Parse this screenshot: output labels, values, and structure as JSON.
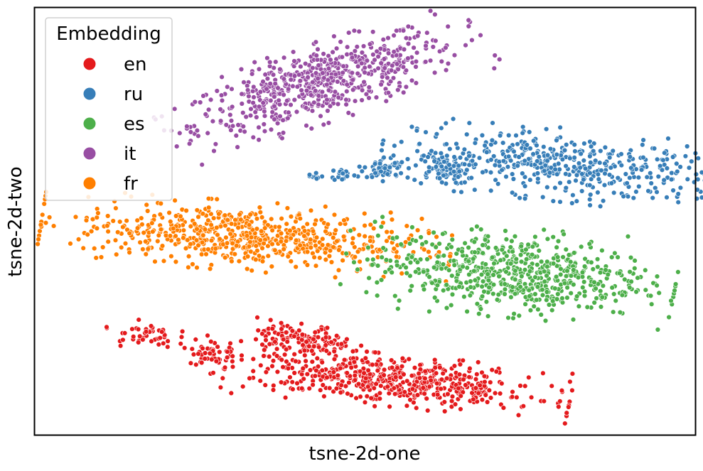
{
  "chart_data": {
    "type": "scatter",
    "xlabel": "tsne-2d-one",
    "ylabel": "tsne-2d-two",
    "grid": false,
    "ticks": "hidden",
    "legend": {
      "title": "Embedding",
      "placement": "upper-left"
    },
    "xlim": [
      0,
      100
    ],
    "ylim": [
      0,
      100
    ],
    "series": [
      {
        "name": "en",
        "color": "#e41a1c",
        "clusters": [
          {
            "cx": 16.5,
            "cy": 23.5,
            "sx": 2.4,
            "sy": 1.4,
            "rot": -5,
            "n": 45
          },
          {
            "cx": 27.0,
            "cy": 19.0,
            "sx": 1.8,
            "sy": 2.4,
            "rot": 0,
            "n": 55
          },
          {
            "cx": 40.5,
            "cy": 22.0,
            "sx": 3.8,
            "sy": 1.9,
            "rot": -10,
            "n": 140
          },
          {
            "cx": 55.0,
            "cy": 12.5,
            "sx": 11.0,
            "sy": 2.6,
            "rot": -8,
            "n": 540
          }
        ]
      },
      {
        "name": "ru",
        "color": "#377eb8",
        "clusters": [
          {
            "cx": 42.3,
            "cy": 60.5,
            "sx": 0.7,
            "sy": 0.6,
            "rot": 0,
            "n": 10
          },
          {
            "cx": 46.8,
            "cy": 61.0,
            "sx": 1.0,
            "sy": 0.8,
            "rot": 0,
            "n": 20
          },
          {
            "cx": 53.0,
            "cy": 62.5,
            "sx": 1.6,
            "sy": 1.3,
            "rot": 0,
            "n": 55
          },
          {
            "cx": 61.5,
            "cy": 62.5,
            "sx": 2.1,
            "sy": 1.9,
            "rot": 0,
            "n": 85
          },
          {
            "cx": 81.0,
            "cy": 63.0,
            "sx": 12.0,
            "sy": 3.6,
            "rot": -9,
            "n": 460
          }
        ]
      },
      {
        "name": "es",
        "color": "#4daf4a",
        "clusters": [
          {
            "cx": 72.0,
            "cy": 38.0,
            "sx": 10.5,
            "sy": 4.4,
            "rot": -7,
            "n": 640
          }
        ]
      },
      {
        "name": "it",
        "color": "#984ea3",
        "clusters": [
          {
            "cx": 43.5,
            "cy": 82.5,
            "sx": 11.0,
            "sy": 3.7,
            "rot": 27,
            "n": 620
          }
        ]
      },
      {
        "name": "fr",
        "color": "#ff7f00",
        "clusters": [
          {
            "cx": 32.0,
            "cy": 46.5,
            "sx": 13.0,
            "sy": 3.4,
            "rot": -6,
            "n": 660
          }
        ]
      }
    ]
  }
}
